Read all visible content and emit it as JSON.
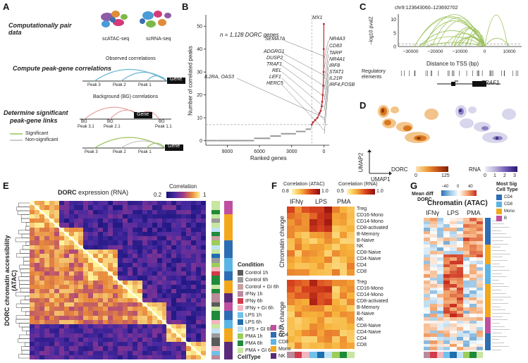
{
  "figure": {
    "panel_labels": [
      "A",
      "B",
      "C",
      "D",
      "E",
      "F",
      "G"
    ],
    "colors": {
      "accent_red": "#c0282d",
      "blue_arc": "#6bb6d6",
      "green_arc": "#9bc25a",
      "grey_arc": "#bbbbbb",
      "heat_low": "#14127a",
      "heat_high": "#fff59b"
    }
  },
  "panelA": {
    "step1": "Computationally pair data",
    "step2": "Compute peak-gene correlations",
    "step3a": "Determine significant",
    "step3b": "peak-gene links",
    "atac_label": "scATAC-seq",
    "rna_label": "scRNA-seq",
    "observed": "Observed  corrrelations",
    "background": "Background (BG)  correlations",
    "gene": "Gene",
    "peaks": [
      "Peak 3",
      "Peak 2",
      "Peak 1"
    ],
    "bg_peaks": [
      "BG Peak 3.1",
      "BG Peak 2.1",
      "BG Peak 1.1"
    ],
    "bg_top": [
      "BG",
      "BG",
      "BG"
    ],
    "bg_bottom": [
      "Peak 3.1",
      "Peak 2.1",
      "Peak 1.1"
    ],
    "legend_sig": "Significant",
    "legend_nonsig": "Non-significant"
  },
  "panelB": {
    "annotation": "n = 1,128 DORC genes",
    "xlabel": "Ranked genes",
    "ylabel": "Number of correlated peaks",
    "genes": [
      "MX1",
      "SEMA7A",
      "NR4A3",
      "CD83",
      "ADGRG1",
      "TARP",
      "DUSP2",
      "NR4A1",
      "TRAF1",
      "IRF8",
      "REL",
      "STAT1",
      "IL2RA, OAS3",
      "LEF1",
      "IL21R",
      "HERC5",
      "IRF4,FOSB"
    ]
  },
  "chart_data": {
    "type": "scatter",
    "title": "",
    "xlabel": "Ranked genes",
    "ylabel": "Number of correlated peaks",
    "x_ticks": [
      "9000",
      "6000",
      "3000",
      "0"
    ],
    "y_ticks": [
      "0",
      "10",
      "20",
      "30",
      "40",
      "50"
    ],
    "xlim": [
      11000,
      -500
    ],
    "ylim": [
      -2,
      55
    ],
    "threshold_y": 7,
    "threshold_x": 1128,
    "points_x": [
      11000,
      10000,
      9000,
      8000,
      7000,
      6500,
      6000,
      5000,
      4500,
      4000,
      3000,
      2600,
      2000,
      1700,
      1400,
      1200,
      1128,
      1000,
      800,
      600,
      400,
      300,
      200,
      150,
      100,
      50,
      20,
      5,
      0
    ],
    "points_y": [
      0,
      0,
      0,
      0,
      0,
      1,
      1,
      2,
      2,
      3,
      3,
      4,
      4,
      5,
      5,
      6,
      7,
      8,
      9,
      10,
      12,
      13,
      15,
      17,
      20,
      24,
      30,
      40,
      51
    ]
  },
  "panelC": {
    "region": "chr9:123643060–123692702",
    "ylabel": "−log10 pvalZ",
    "xlabel": "Distance to TSS (bp)",
    "y_ticks": [
      "0",
      "5",
      "10"
    ],
    "x_ticks": [
      "−30000",
      "−20000",
      "−10000",
      "0",
      "10000"
    ],
    "reg_label_1": "Regulatory",
    "reg_label_2": "elements",
    "gene": "TRAF1"
  },
  "panelD": {
    "xlabel": "UMAP1",
    "ylabel": "UMAP2",
    "dorc_label": "DORC",
    "dorc_ticks": [
      "0",
      "125"
    ],
    "rna_label": "RNA",
    "rna_ticks": [
      "0",
      "1",
      "2",
      "3"
    ]
  },
  "panelE": {
    "title_bold": "DORC",
    "title_rest": " expression (RNA)",
    "corr_label": "Correlation",
    "corr_ticks": [
      "0.2",
      "1"
    ],
    "ylabel": "DORC chromatin accessibility (ATAC)",
    "condition_title": "Condition",
    "conditions": [
      {
        "label": "Control 1h",
        "color": "#5a5a5a"
      },
      {
        "label": "Control 6h",
        "color": "#9a9a9a"
      },
      {
        "label": "Control + GI 6h",
        "color": "#c9a0a0"
      },
      {
        "label": "IFNγ 1h",
        "color": "#b98b9b"
      },
      {
        "label": "IFNγ 6h",
        "color": "#d33a4a"
      },
      {
        "label": "IFNγ + GI 6h",
        "color": "#f2b6bf"
      },
      {
        "label": "LPS 1h",
        "color": "#6fc2ea"
      },
      {
        "label": "LPS 6h",
        "color": "#1f6fb0"
      },
      {
        "label": "LPS + GI 6h",
        "color": "#bfe3f5"
      },
      {
        "label": "PMA 1h",
        "color": "#9acd5a"
      },
      {
        "label": "PMA 6h",
        "color": "#1f8a3a"
      },
      {
        "label": "PMA + GI 6h",
        "color": "#c7e6a1"
      }
    ],
    "celltype_title": "CellType",
    "celltypes": [
      {
        "label": "B",
        "color": "#c04fa0"
      },
      {
        "label": "CD4",
        "color": "#2e6db4"
      },
      {
        "label": "CD8",
        "color": "#5ab5e5"
      },
      {
        "label": "Mono",
        "color": "#f3a81c"
      },
      {
        "label": "NK",
        "color": "#5a2a7a"
      }
    ]
  },
  "panelF": {
    "atac_legend": "Correlation (ATAC)",
    "rna_legend": "Correlation (RNA)",
    "atac_ticks": [
      "0.8",
      "1.0"
    ],
    "rna_ticks": [
      "0.5",
      "1.0"
    ],
    "columns": [
      "IFNγ",
      "LPS",
      "PMA"
    ],
    "row_title_top": "Chromatin change",
    "row_title_bottom": "RNA change",
    "rows": [
      "Treg",
      "CD16-Mono",
      "CD14-Mono",
      "CD8-activated",
      "B-Memory",
      "B-Naive",
      "NK",
      "CD8-Naive",
      "CD4-Naive",
      "CD4",
      "CD8"
    ]
  },
  "panelG": {
    "legend_title_1": "Mean diff",
    "legend_title_2": "DORC",
    "legend_ticks": [
      "−40",
      "0",
      "40"
    ],
    "title": "Chromatin (ATAC)",
    "columns": [
      "IFNγ",
      "LPS",
      "PMA"
    ],
    "sig_title_1": "Most Sig",
    "sig_title_2": "Cell Type",
    "sig_types": [
      {
        "label": "CD4",
        "color": "#2e6db4"
      },
      {
        "label": "CD8",
        "color": "#5ab5e5"
      },
      {
        "label": "Mono",
        "color": "#f3a81c"
      },
      {
        "label": "B",
        "color": "#c04fa0"
      }
    ]
  }
}
